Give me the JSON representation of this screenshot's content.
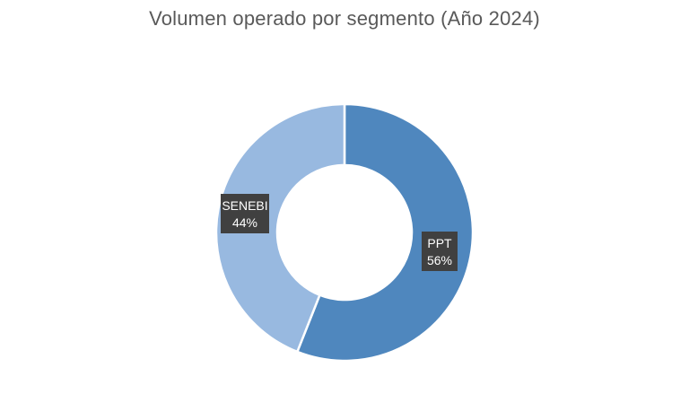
{
  "chart_data": {
    "type": "pie",
    "variant": "donut",
    "title": "Volumen operado por segmento (Año 2024)",
    "slices": [
      {
        "name": "PPT",
        "value": 56,
        "label": "56%",
        "color": "#4F87BE"
      },
      {
        "name": "SENEBI",
        "value": 44,
        "label": "44%",
        "color": "#98B9E0"
      }
    ],
    "start_angle_deg": 0,
    "direction": "clockwise",
    "legend": "none"
  }
}
